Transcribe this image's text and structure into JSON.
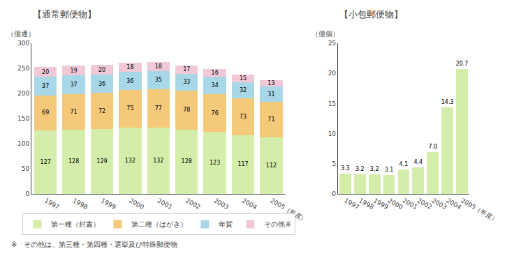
{
  "chart_data": [
    {
      "type": "bar",
      "stacked": true,
      "title": "【通常郵便物】",
      "ylabel": "（億通）",
      "categories": [
        "1997",
        "1998",
        "1999",
        "2000",
        "2001",
        "2002",
        "2003",
        "2004",
        "2005（年度）"
      ],
      "series": [
        {
          "name": "第一種（封書）",
          "color": "#d4edaa",
          "values": [
            127,
            128,
            129,
            132,
            132,
            128,
            123,
            117,
            112
          ]
        },
        {
          "name": "第二種（はがき）",
          "color": "#f5c97a",
          "values": [
            69,
            71,
            72,
            75,
            77,
            78,
            76,
            73,
            71
          ]
        },
        {
          "name": "年賀",
          "color": "#a8d8e8",
          "values": [
            37,
            37,
            36,
            36,
            35,
            33,
            34,
            32,
            31
          ]
        },
        {
          "name": "その他※",
          "color": "#f0c8d8",
          "values": [
            20,
            19,
            20,
            18,
            18,
            17,
            16,
            15,
            13
          ]
        }
      ],
      "data_labels": true,
      "ylim": [
        0,
        300
      ],
      "yticks": [
        0,
        50,
        100,
        150,
        200,
        250,
        300
      ],
      "grid": false,
      "legend": "bottom",
      "annotations": [
        "※　その他は、第三種・第四種・選挙及び特殊郵便物"
      ]
    },
    {
      "type": "bar",
      "title": "【小包郵便物】",
      "ylabel": "（億個）",
      "categories": [
        "1997",
        "1998",
        "1999",
        "2000",
        "2001",
        "2002",
        "2003",
        "2004",
        "2005（年度）"
      ],
      "values": [
        3.3,
        3.2,
        3.2,
        3.1,
        4.1,
        4.4,
        7.0,
        14.3,
        20.7
      ],
      "value_labels": [
        "3.3",
        "3.2",
        "3.2",
        "3.1",
        "4.1",
        "4.4",
        "7.0",
        "14.3",
        "20.7"
      ],
      "color": "#d4edaa",
      "data_labels": true,
      "ylim": [
        0,
        25
      ],
      "yticks": [
        0,
        5,
        10,
        15,
        20,
        25
      ],
      "grid": false
    }
  ]
}
